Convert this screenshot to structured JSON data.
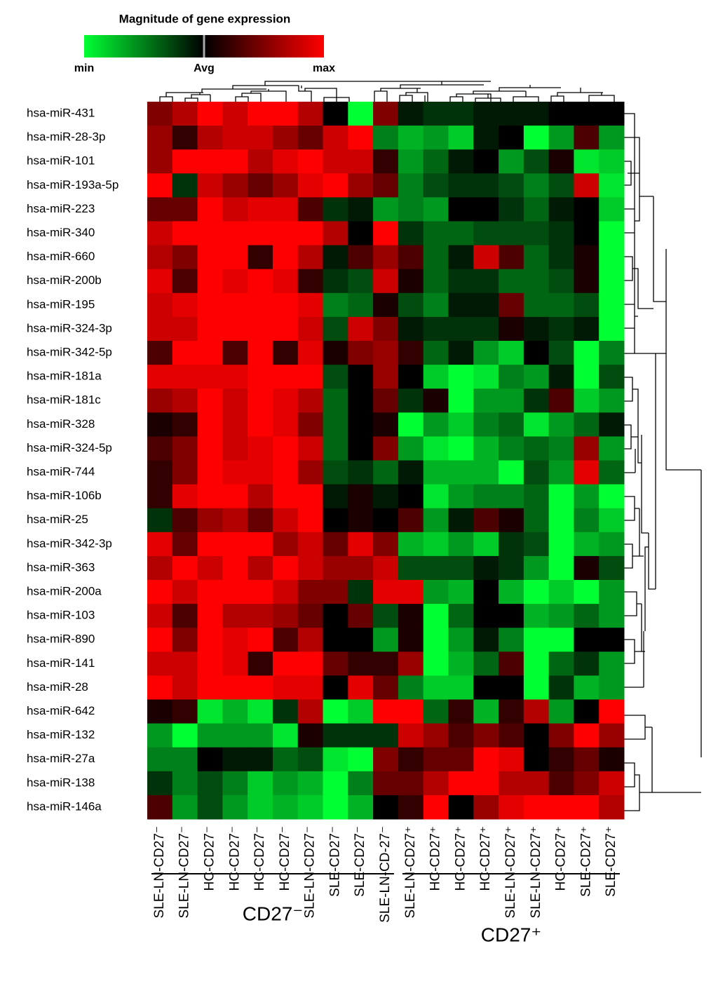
{
  "chart_data": {
    "type": "heatmap",
    "colorbar": {
      "title": "Magnitude of gene expression",
      "colors": [
        "#00ff33",
        "#000000",
        "#ff0000"
      ],
      "lim": [
        -1,
        1
      ],
      "ticks": [
        {
          "value": -1,
          "label": "min"
        },
        {
          "value": 0,
          "label": "Avg"
        },
        {
          "value": 1,
          "label": "max"
        }
      ]
    },
    "rows": [
      "hsa-miR-431",
      "hsa-miR-28-3p",
      "hsa-miR-101",
      "hsa-miR-193a-5p",
      "hsa-miR-223",
      "hsa-miR-340",
      "hsa-miR-660",
      "hsa-miR-200b",
      "hsa-miR-195",
      "hsa-miR-324-3p",
      "hsa-miR-342-5p",
      "hsa-miR-181a",
      "hsa-miR-181c",
      "hsa-miR-328",
      "hsa-miR-324-5p",
      "hsa-miR-744",
      "hsa-miR-106b",
      "hsa-miR-25",
      "hsa-miR-342-3p",
      "hsa-miR-363",
      "hsa-miR-200a",
      "hsa-miR-103",
      "hsa-miR-890",
      "hsa-miR-141",
      "hsa-miR-28",
      "hsa-miR-642",
      "hsa-miR-132",
      "hsa-miR-27a",
      "hsa-miR-138",
      "hsa-miR-146a"
    ],
    "columns": [
      "SLE-LN-CD27⁻",
      "SLE-LN-CD27⁻",
      "HC-CD27⁻",
      "HC-CD27⁻",
      "HC-CD27⁻",
      "HC-CD27⁻",
      "SLE-LN-CD27⁻",
      "SLE-CD27⁻",
      "SLE-CD27⁻",
      "SLE-LN-CD-27⁻",
      "SLE-LN-CD27⁺",
      "HC-CD27⁺",
      "HC-CD27⁺",
      "HC-CD27⁺",
      "SLE-LN-CD27⁺",
      "SLE-LN-CD27⁺",
      "HC-CD27⁺",
      "SLE-CD27⁺",
      "SLE-CD27⁺"
    ],
    "groups": [
      {
        "name": "CD27⁻",
        "count": 10
      },
      {
        "name": "CD27⁺",
        "count": 9
      }
    ],
    "values": [
      [
        0.5,
        0.7,
        1,
        0.8,
        1,
        1,
        0.7,
        0,
        -1,
        0.5,
        -0.1,
        -0.2,
        -0.2,
        -0.1,
        -0.1,
        -0.1,
        0,
        0,
        0
      ],
      [
        0.6,
        0.2,
        0.7,
        0.8,
        0.8,
        0.6,
        0.4,
        0.8,
        1,
        -0.5,
        -0.7,
        -0.6,
        -0.8,
        -0.1,
        0,
        -1,
        -0.6,
        0.3,
        -0.6
      ],
      [
        0.6,
        1,
        1,
        1,
        0.7,
        0.9,
        1,
        0.8,
        0.8,
        0.2,
        -0.6,
        -0.4,
        -0.1,
        0,
        -0.6,
        -0.3,
        0.1,
        -0.9,
        -0.8
      ],
      [
        1,
        -0.2,
        0.8,
        0.6,
        0.4,
        0.6,
        0.9,
        1,
        0.6,
        0.4,
        -0.5,
        -0.3,
        -0.2,
        -0.2,
        -0.3,
        -0.5,
        -0.3,
        0.8,
        -0.9
      ],
      [
        0.4,
        0.4,
        1,
        0.8,
        0.9,
        0.9,
        0.3,
        -0.2,
        -0.1,
        -0.6,
        -0.5,
        -0.6,
        0,
        0,
        -0.2,
        -0.4,
        -0.1,
        0,
        -0.8
      ],
      [
        0.8,
        1,
        1,
        1,
        1,
        1,
        1,
        0.7,
        0,
        1,
        -0.2,
        -0.4,
        -0.4,
        -0.3,
        -0.3,
        -0.3,
        -0.2,
        0,
        -1
      ],
      [
        0.7,
        0.5,
        1,
        1,
        0.2,
        1,
        0.7,
        -0.1,
        0.3,
        0.6,
        0.3,
        -0.4,
        -0.1,
        0.8,
        0.3,
        -0.4,
        -0.2,
        0.1,
        -1
      ],
      [
        0.9,
        0.3,
        1,
        0.9,
        1,
        0.9,
        0.2,
        -0.2,
        -0.3,
        0.8,
        0.1,
        -0.4,
        -0.2,
        -0.2,
        -0.4,
        -0.4,
        -0.3,
        0.1,
        -1
      ],
      [
        0.8,
        0.9,
        1,
        1,
        1,
        1,
        0.9,
        -0.5,
        -0.4,
        0.1,
        -0.3,
        -0.5,
        -0.1,
        -0.1,
        0.4,
        -0.4,
        -0.4,
        -0.3,
        -1
      ],
      [
        0.8,
        0.8,
        1,
        1,
        1,
        1,
        0.8,
        -0.3,
        0.8,
        0.5,
        -0.1,
        -0.2,
        -0.2,
        -0.2,
        0.1,
        -0.1,
        -0.2,
        -0.1,
        -1
      ],
      [
        0.3,
        1,
        1,
        0.3,
        1,
        0.2,
        0.9,
        0.1,
        0.5,
        0.6,
        0.2,
        -0.4,
        -0.1,
        -0.6,
        -0.8,
        0,
        -0.3,
        -1,
        -0.5
      ],
      [
        0.9,
        0.9,
        0.9,
        0.9,
        1,
        1,
        1,
        -0.3,
        0,
        0.6,
        0,
        -0.8,
        -1,
        -0.9,
        -0.5,
        -0.6,
        -0.1,
        -1,
        -0.3
      ],
      [
        0.6,
        0.7,
        1,
        0.8,
        1,
        0.9,
        0.7,
        -0.4,
        0,
        0.4,
        -0.2,
        0.1,
        -1,
        -0.6,
        -0.6,
        -0.2,
        0.3,
        -0.8,
        -0.6
      ],
      [
        0.1,
        0.2,
        1,
        0.8,
        1,
        0.9,
        0.5,
        -0.4,
        0,
        0.1,
        -1,
        -0.6,
        -0.8,
        -0.5,
        -0.4,
        -0.9,
        -0.6,
        -0.4,
        -0.1
      ],
      [
        0.3,
        0.5,
        1,
        0.8,
        0.9,
        1,
        0.8,
        -0.4,
        0,
        0.5,
        -0.6,
        -0.9,
        -1,
        -0.7,
        -0.5,
        -0.4,
        -0.5,
        0.6,
        -0.6
      ],
      [
        0.2,
        0.5,
        1,
        0.9,
        0.9,
        1,
        0.6,
        -0.3,
        -0.2,
        -0.4,
        -0.1,
        -0.7,
        -0.7,
        -0.7,
        -1,
        -0.3,
        -0.6,
        0.9,
        -0.4
      ],
      [
        0.2,
        0.9,
        1,
        1,
        0.7,
        1,
        1,
        -0.1,
        0.1,
        -0.1,
        0,
        -0.9,
        -0.6,
        -0.5,
        -0.5,
        -0.4,
        -1,
        -0.6,
        -1
      ],
      [
        -0.2,
        0.3,
        0.6,
        0.7,
        0.4,
        0.8,
        1,
        0,
        0.1,
        0,
        0.3,
        -0.6,
        -0.1,
        0.3,
        0.1,
        -0.4,
        -1,
        -0.5,
        -0.8
      ],
      [
        0.9,
        0.4,
        1,
        1,
        1,
        0.6,
        0.8,
        0.4,
        0.9,
        0.5,
        -0.7,
        -0.8,
        -0.6,
        -0.8,
        -0.2,
        -0.3,
        -1,
        -0.7,
        -0.6
      ],
      [
        0.7,
        1,
        0.8,
        1,
        0.7,
        1,
        0.8,
        0.6,
        0.6,
        0.8,
        -0.3,
        -0.3,
        -0.3,
        -0.1,
        -0.2,
        -0.6,
        -1,
        0.1,
        -0.3
      ],
      [
        1,
        0.8,
        1,
        1,
        1,
        0.8,
        0.5,
        0.5,
        -0.2,
        0.9,
        0.9,
        -0.6,
        -0.7,
        0,
        -0.7,
        -1,
        -0.8,
        -1,
        -0.6
      ],
      [
        0.8,
        0.3,
        1,
        0.7,
        0.7,
        0.6,
        0.4,
        0,
        0.4,
        -0.3,
        0.1,
        -1,
        -0.4,
        0,
        0,
        -0.7,
        -0.6,
        -0.4,
        -0.6
      ],
      [
        1,
        0.5,
        1,
        0.9,
        1,
        0.3,
        0.7,
        0,
        0,
        -0.6,
        0.1,
        -1,
        -0.6,
        -0.1,
        -0.5,
        -1,
        -1,
        0,
        0
      ],
      [
        0.8,
        0.8,
        1,
        0.9,
        0.2,
        1,
        1,
        0.4,
        0.2,
        0.2,
        0.6,
        -1,
        -0.7,
        -0.4,
        0.3,
        -1,
        -0.4,
        -0.2,
        -0.6
      ],
      [
        1,
        0.8,
        1,
        1,
        1,
        0.9,
        0.9,
        0,
        0.9,
        0.4,
        -0.5,
        -0.8,
        -0.8,
        0,
        0,
        -1,
        -0.2,
        -0.7,
        -0.6
      ],
      [
        0.1,
        0.2,
        -0.9,
        -0.7,
        -0.9,
        -0.2,
        0.7,
        -1,
        -0.8,
        1,
        1,
        -0.4,
        0.2,
        -0.7,
        0.2,
        0.7,
        -0.6,
        0,
        1
      ],
      [
        -0.6,
        -1,
        -0.6,
        -0.6,
        -0.6,
        -0.9,
        0.1,
        -0.2,
        -0.2,
        -0.2,
        0.8,
        0.6,
        0.3,
        0.5,
        0.3,
        0,
        0.5,
        1,
        0.6
      ],
      [
        -0.5,
        -0.5,
        0,
        -0.1,
        -0.1,
        -0.4,
        -0.3,
        -0.9,
        -1,
        0.5,
        0.2,
        0.4,
        0.4,
        1,
        0.9,
        0,
        0.2,
        0.4,
        0.1
      ],
      [
        -0.2,
        -0.5,
        -0.3,
        -0.5,
        -0.8,
        -0.6,
        -0.7,
        -1,
        -0.5,
        0.4,
        0.4,
        0.7,
        1,
        1,
        0.7,
        0.7,
        0.3,
        0.5,
        0.8
      ],
      [
        0.3,
        -0.6,
        -0.3,
        -0.6,
        -0.8,
        -0.7,
        -0.8,
        -1,
        -0.7,
        0,
        0.2,
        1,
        0,
        0.6,
        0.9,
        1,
        1,
        1,
        0.7
      ]
    ]
  }
}
